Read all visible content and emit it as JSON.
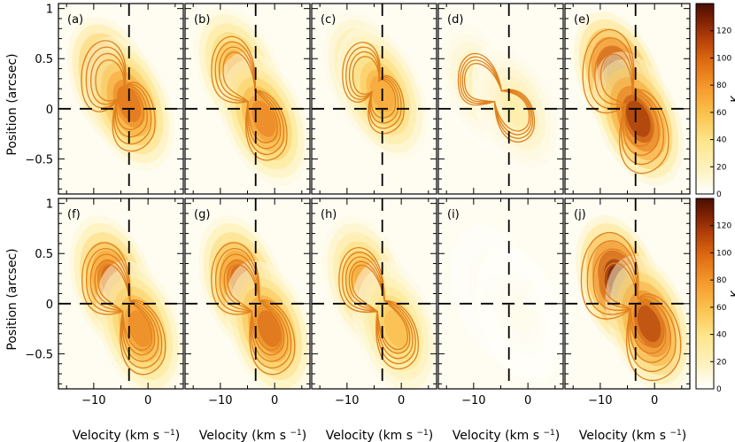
{
  "figure": {
    "ylabel": "Position (arcsec)",
    "xlabel": "Velocity (km s",
    "xlabel_sup": "−1",
    "xlabel_close": ")",
    "colorbar_unit": "K"
  },
  "colors": {
    "frame": "#000000",
    "contour": "#e0801c",
    "colormap": [
      "#ffffff",
      "#fdf3c2",
      "#fde58a",
      "#fbc24f",
      "#f59a2c",
      "#de6a12",
      "#b13e08",
      "#7a1f04",
      "#4a0e02"
    ]
  },
  "chart_data": {
    "type": "heatmap",
    "description_kind": "position-velocity diagrams",
    "x_axis": {
      "range": [
        -16.5,
        6.5
      ],
      "ticks": [
        -10,
        0
      ],
      "tick_labels": [
        "−10",
        "0"
      ]
    },
    "y_axis": {
      "range": [
        -0.85,
        1.05
      ],
      "ticks": [
        -0.5,
        0,
        0.5,
        1
      ],
      "tick_labels": [
        "−0.5",
        "0",
        "0.5",
        "1"
      ]
    },
    "colorbar": {
      "range": [
        0,
        140
      ],
      "ticks": [
        0,
        20,
        40,
        60,
        80,
        100,
        120
      ],
      "unit": "K"
    },
    "dashed_reference": {
      "velocity": -3.5,
      "position": 0
    },
    "panels": [
      {
        "label": "(a)",
        "row": "observed",
        "peak_K": 110,
        "components": [
          {
            "v": -6.5,
            "p": 0.25,
            "amp": 1.0
          },
          {
            "v": -3.5,
            "p": 0.05,
            "amp": 0.85
          }
        ]
      },
      {
        "label": "(b)",
        "row": "observed",
        "peak_K": 90,
        "components": [
          {
            "v": -6.5,
            "p": 0.35,
            "amp": 0.85
          },
          {
            "v": -2.0,
            "p": -0.1,
            "amp": 0.95
          }
        ]
      },
      {
        "label": "(c)",
        "row": "observed",
        "peak_K": 80,
        "components": [
          {
            "v": -6.0,
            "p": 0.3,
            "amp": 0.8
          },
          {
            "v": -3.5,
            "p": 0.15,
            "amp": 0.9
          }
        ]
      },
      {
        "label": "(d)",
        "row": "observed",
        "peak_K": 40,
        "components": [
          {
            "v": -9.0,
            "p": 0.25,
            "amp": 0.6
          },
          {
            "v": -2.0,
            "p": 0.0,
            "amp": 0.7
          }
        ]
      },
      {
        "label": "(e)",
        "row": "observed",
        "peak_K": 140,
        "components": [
          {
            "v": -6.5,
            "p": 0.3,
            "amp": 1.0
          },
          {
            "v": -3.0,
            "p": -0.1,
            "amp": 0.85
          }
        ]
      },
      {
        "label": "(f)",
        "row": "model",
        "peak_K": 100,
        "components": [
          {
            "v": -6.5,
            "p": 0.2,
            "amp": 1.0
          },
          {
            "v": -1.5,
            "p": -0.25,
            "amp": 0.85
          }
        ]
      },
      {
        "label": "(g)",
        "row": "model",
        "peak_K": 100,
        "components": [
          {
            "v": -6.0,
            "p": 0.2,
            "amp": 1.0
          },
          {
            "v": -1.0,
            "p": -0.25,
            "amp": 0.95
          }
        ]
      },
      {
        "label": "(h)",
        "row": "model",
        "peak_K": 80,
        "components": [
          {
            "v": -6.5,
            "p": 0.2,
            "amp": 0.9
          },
          {
            "v": -1.0,
            "p": -0.25,
            "amp": 0.75
          }
        ]
      },
      {
        "label": "(i)",
        "row": "model",
        "peak_K": 20,
        "components": [
          {
            "v": -6.0,
            "p": 0.1,
            "amp": 0.35
          },
          {
            "v": -1.5,
            "p": -0.1,
            "amp": 0.3
          }
        ]
      },
      {
        "label": "(j)",
        "row": "model",
        "peak_K": 140,
        "components": [
          {
            "v": -6.5,
            "p": 0.2,
            "amp": 1.0
          },
          {
            "v": -1.0,
            "p": -0.2,
            "amp": 0.8
          }
        ]
      }
    ]
  }
}
